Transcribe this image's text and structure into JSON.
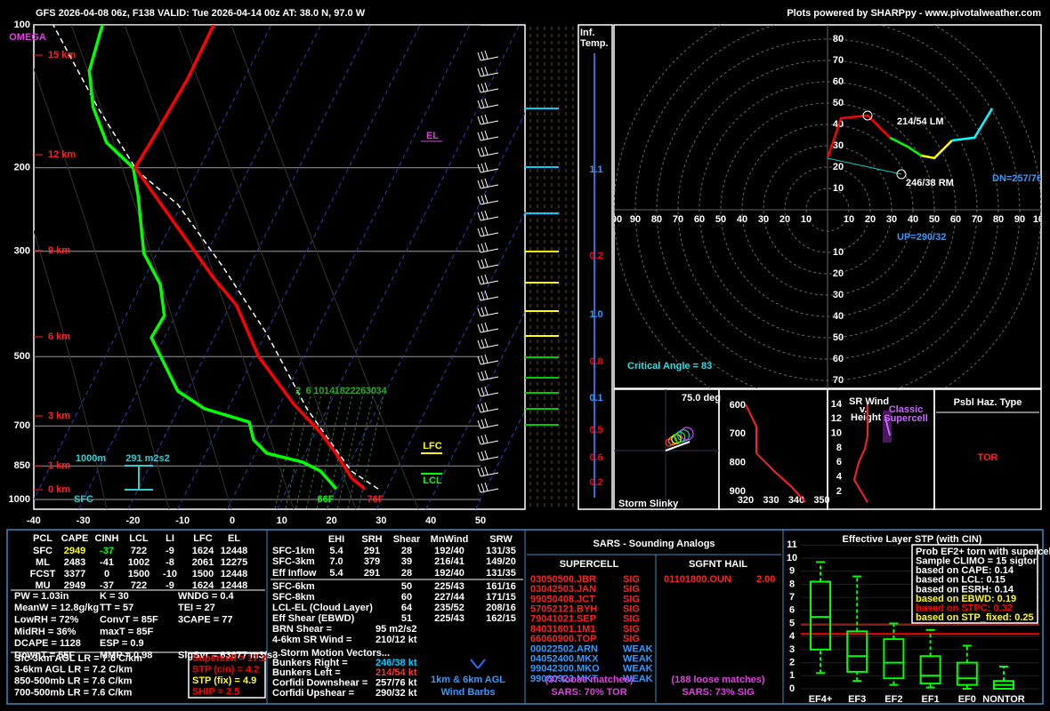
{
  "header": {
    "title": "GFS 2026-04-08 06z, F138  VALID: Tue 2026-04-14 00z  AT: 38.0 N, 97.0 W",
    "credit": "Plots powered by SHARPpy - www.pivotalweather.com"
  },
  "skewt": {
    "pressure_ticks": [
      100,
      200,
      300,
      500,
      700,
      850,
      1000
    ],
    "temperature_ticks": [
      -40,
      -30,
      -20,
      -10,
      0,
      10,
      20,
      30,
      40,
      50
    ],
    "omega_label": "OMEGA",
    "height_labels": [
      "15 km",
      "12 km",
      "9 km",
      "6 km",
      "3 km",
      "1 km",
      "0 km"
    ],
    "mixing_ratio_labels": [
      2,
      6,
      10,
      14,
      18,
      22,
      26,
      30,
      34
    ],
    "temperature": {
      "color": "#ff0000",
      "p": [
        950,
        900,
        800,
        720,
        630,
        500,
        390,
        340,
        260,
        200,
        170,
        130,
        100
      ],
      "t": [
        25.6,
        21.8,
        16.3,
        10.8,
        2.8,
        -9.1,
        -18.7,
        -26.3,
        -39.8,
        -53,
        -52.3,
        -51.4,
        -51.6
      ]
    },
    "dewpoint": {
      "color": "#00ff00",
      "p": [
        950,
        871,
        834,
        799,
        749,
        687,
        644,
        591,
        456,
        410,
        352,
        303,
        229,
        200,
        177,
        149,
        125,
        100
      ],
      "t": [
        19.9,
        14.9,
        10.4,
        2.3,
        -1.7,
        -4.4,
        -14.7,
        -21.9,
        -32.6,
        -32.2,
        -36.2,
        -42.6,
        -49.6,
        -53.4,
        -61.3,
        -67.6,
        -72,
        -74
      ]
    },
    "parcel": {
      "color": "#ffffff",
      "p": [
        950,
        871,
        644,
        447,
        323,
        239,
        203,
        149,
        100
      ],
      "t": [
        28.3,
        21.1,
        5.9,
        -9.8,
        -25.4,
        -40.7,
        -52.3,
        -66.7,
        -83.9
      ]
    },
    "levels": {
      "el": "EL",
      "lfc": "LFC",
      "lcl": "LCL"
    },
    "inflow": {
      "depth": "1000m",
      "srh": "291 m2s2"
    },
    "surface": {
      "label": "SFC",
      "dewpoint": "66F",
      "temperature": "76F"
    }
  },
  "inferred_temp": {
    "title": [
      "Inf.",
      "Temp."
    ],
    "labels": [
      {
        "text": "1.1",
        "color": "#3399ff"
      },
      {
        "text": "0.2",
        "color": "#ff0000"
      },
      {
        "text": "1.0",
        "color": "#3399ff"
      },
      {
        "text": "0.8",
        "color": "#ff0000"
      },
      {
        "text": "0.1",
        "color": "#3399ff"
      },
      {
        "text": "0.5",
        "color": "#ff0000"
      },
      {
        "text": "0.6",
        "color": "#ff0000"
      },
      {
        "text": "0.2",
        "color": "#ff0000"
      }
    ]
  },
  "hodograph": {
    "rings": [
      10,
      20,
      30,
      40,
      50,
      60,
      70,
      80,
      90,
      100
    ],
    "series": [
      {
        "color": "#ff0000",
        "u": [
          0,
          6.3,
          18.8,
          29.2
        ],
        "v": [
          24.2,
          42.9,
          44.2,
          33.8
        ]
      },
      {
        "color": "#00ff00",
        "u": [
          29.2,
          37.5,
          43.8
        ],
        "v": [
          33.8,
          29.6,
          25.4
        ]
      },
      {
        "color": "#ffff00",
        "u": [
          43.8,
          50,
          58.3
        ],
        "v": [
          25.4,
          24.2,
          32.5
        ]
      },
      {
        "color": "#00ffff",
        "u": [
          58.3,
          68.8,
          77.1
        ],
        "v": [
          32.5,
          33.8,
          47.5
        ]
      }
    ],
    "lm": "214/54 LM",
    "rm": "246/38 RM",
    "downshear": "DN=257/76",
    "upshear": "UP=290/32",
    "critical_angle": "Critical Angle = 83"
  },
  "slinky": {
    "angle": "75.0 deg",
    "title": "Storm Slinky"
  },
  "theta_e": {
    "pressure_ticks": [
      600,
      700,
      800,
      900
    ],
    "theta_ticks": [
      320,
      330,
      340,
      350
    ],
    "p": [
      597,
      674,
      767,
      829,
      885,
      937
    ],
    "theta": [
      320,
      324.2,
      324.2,
      331.2,
      338.2,
      343.5
    ]
  },
  "sr_wind": {
    "title": [
      "SR Wind",
      "v.",
      "Height"
    ],
    "band": [
      "Classic",
      "Supercell"
    ],
    "height_ticks": [
      2,
      4,
      6,
      8,
      10,
      12,
      14
    ],
    "height": [
      0.5,
      3.6,
      6,
      7.9,
      9.7,
      14
    ],
    "speed": [
      23.3,
      13.3,
      16.7,
      21.3,
      23.3,
      23.3
    ]
  },
  "hazard": {
    "title": "Psbl Haz. Type",
    "type": "TOR"
  },
  "thermo": {
    "headers": [
      "PCL",
      "CAPE",
      "CINH",
      "LCL",
      "LI",
      "LFC",
      "EL"
    ],
    "rows": [
      [
        "SFC",
        "2949",
        "-37",
        "722",
        "-9",
        "1624",
        "12448"
      ],
      [
        "ML",
        "2483",
        "-41",
        "1002",
        "-8",
        "2061",
        "12275"
      ],
      [
        "FCST",
        "3377",
        "0",
        "1500",
        "-10",
        "1500",
        "12448"
      ],
      [
        "MU",
        "2949",
        "-37",
        "722",
        "-9",
        "1624",
        "12448"
      ]
    ],
    "indices": [
      [
        "PW = 1.03in",
        "K = 30",
        "WNDG = 0.4"
      ],
      [
        "MeanW = 12.8g/kg",
        "TT = 57",
        "TEI = 27"
      ],
      [
        "LowRH = 72%",
        "ConvT = 85F",
        "3CAPE = 77"
      ],
      [
        "MidRH = 36%",
        "maxT = 85F"
      ],
      [
        "DCAPE = 1128",
        "ESP = 0.9"
      ],
      [
        "DownT = 55F",
        "MMP = 0.98",
        "SigSvr = 63677 m3/s3"
      ]
    ],
    "lapse_rates": [
      "Sfc-3km AGL LR = 7.6 C/km",
      "3-6km AGL LR = 7.2 C/km",
      "850-500mb LR = 7.6 C/km",
      "700-500mb LR = 7.6 C/km"
    ],
    "severe": [
      {
        "text": "Supercell = 17.2",
        "color": "#ff0000"
      },
      {
        "text": "STP (cin) = 4.2",
        "color": "#ff0000"
      },
      {
        "text": "STP (fix) = 4.9",
        "color": "#ffff00"
      },
      {
        "text": "SHIP = 2.5",
        "color": "#ff0000"
      }
    ]
  },
  "kinematic": {
    "headers": {
      "ehi": "EHI",
      "srh": "SRH",
      "shear": "Shear",
      "mnwind": "MnWind",
      "srw": "SRW"
    },
    "rows": [
      {
        "name": "SFC-1km",
        "ehi": "5.4",
        "srh": "291",
        "shear": "28",
        "mnwind": "192/40",
        "srw": "131/35"
      },
      {
        "name": "SFC-3km",
        "ehi": "7.0",
        "srh": "379",
        "shear": "39",
        "mnwind": "216/41",
        "srw": "149/20"
      },
      {
        "name": "Eff Inflow",
        "ehi": "5.4",
        "srh": "291",
        "shear": "28",
        "mnwind": "192/40",
        "srw": "131/35"
      },
      {
        "name": "SFC-6km",
        "shear": "50",
        "mnwind": "225/43",
        "srw": "161/16"
      },
      {
        "name": "SFC-8km",
        "shear": "60",
        "mnwind": "227/44",
        "srw": "171/15"
      },
      {
        "name": "LCL-EL (Cloud Layer)",
        "shear": "64",
        "mnwind": "235/52",
        "srw": "208/16"
      },
      {
        "name": "Eff Shear (EBWD)",
        "shear": "51",
        "mnwind": "225/43",
        "srw": "162/15"
      }
    ],
    "extras": [
      [
        "BRN Shear =",
        "95 m2/s2"
      ],
      [
        "4-6km SR Wind =",
        "210/12 kt"
      ]
    ],
    "motion_title": "...Storm Motion Vectors...",
    "motion": [
      {
        "name": "Bunkers Right =",
        "value": "246/38 kt",
        "color": "#00ccff"
      },
      {
        "name": "Bunkers Left =",
        "value": "214/54 kt",
        "color": "#ff3333"
      },
      {
        "name": "Corfidi Downshear =",
        "value": "257/76 kt",
        "color": "#ffffff"
      },
      {
        "name": "Corfidi Upshear =",
        "value": "290/32 kt",
        "color": "#ffffff"
      }
    ],
    "barb_note": [
      "1km & 6km AGL",
      "Wind Barbs"
    ]
  },
  "sars": {
    "title": "SARS - Sounding Analogs",
    "supercell_title": "SUPERCELL",
    "hail_title": "SGFNT HAIL",
    "supercell": [
      {
        "date": "03050500.JBR",
        "type": "SIG"
      },
      {
        "date": "03042503.JAN",
        "type": "SIG"
      },
      {
        "date": "99050408.JCT",
        "type": "SIG"
      },
      {
        "date": "57052121.BYH",
        "type": "SIG"
      },
      {
        "date": "79041021.SEP",
        "type": "SIG"
      },
      {
        "date": "84031601.1M1",
        "type": "SIG"
      },
      {
        "date": "66060900.TOP",
        "type": "SIG"
      },
      {
        "date": "00022502.ARN",
        "type": "WEAK"
      },
      {
        "date": "04052400.MKX",
        "type": "WEAK"
      },
      {
        "date": "99042300.MKO",
        "type": "WEAK"
      },
      {
        "date": "99080923.MKT",
        "type": "WEAK"
      }
    ],
    "hail": [
      {
        "date": "01101800.OUN",
        "size": "2.00"
      }
    ],
    "supercell_loose": "(37 loose matches)",
    "hail_loose": "(188 loose matches)",
    "supercell_result": "SARS: 70% TOR",
    "hail_result": "SARS: 73% SIG"
  },
  "stp": {
    "title": "Effective Layer STP (with CIN)",
    "yticks": [
      0,
      1,
      2,
      3,
      4,
      5,
      6,
      7,
      8,
      9,
      10,
      11
    ],
    "categories": [
      "EF4+",
      "EF3",
      "EF2",
      "EF1",
      "EF0",
      "NONTOR"
    ],
    "boxes": [
      {
        "min": 1.2,
        "q1": 3.0,
        "median": 5.5,
        "q3": 8.2,
        "max": 9.7
      },
      {
        "min": 0.6,
        "q1": 1.3,
        "median": 2.5,
        "q3": 4.4,
        "max": 8.6
      },
      {
        "min": 0.3,
        "q1": 0.8,
        "median": 2.0,
        "q3": 3.8,
        "max": 5.0
      },
      {
        "min": 0.1,
        "q1": 0.4,
        "median": 1.0,
        "q3": 2.5,
        "max": 4.5
      },
      {
        "min": 0,
        "q1": 0.3,
        "median": 0.8,
        "q3": 2.0,
        "max": 3.3
      },
      {
        "min": 0,
        "q1": 0,
        "median": 0.3,
        "q3": 0.6,
        "max": 1.7
      }
    ],
    "markers": [
      {
        "value": 4.9,
        "color": "#8b1a1a"
      },
      {
        "value": 4.2,
        "color": "#ff0000"
      }
    ],
    "legend": [
      {
        "text": "Prob EF2+ torn with supercell",
        "color": "#ffffff"
      },
      {
        "text": "Sample CLIMO = 15 sigtor",
        "color": "#ffffff"
      },
      {
        "text": "based on CAPE: 0.14",
        "color": "#ffffff"
      },
      {
        "text": "based on LCL: 0.15",
        "color": "#ffffff"
      },
      {
        "text": "based on ESRH: 0.14",
        "color": "#ffffff"
      },
      {
        "text": "based on EBWD: 0.19",
        "color": "#ffff00"
      },
      {
        "text": "based on STPC: 0.32",
        "color": "#ff0000"
      },
      {
        "text": "based on STP_fixed: 0.25",
        "color": "#ffff00"
      }
    ]
  }
}
